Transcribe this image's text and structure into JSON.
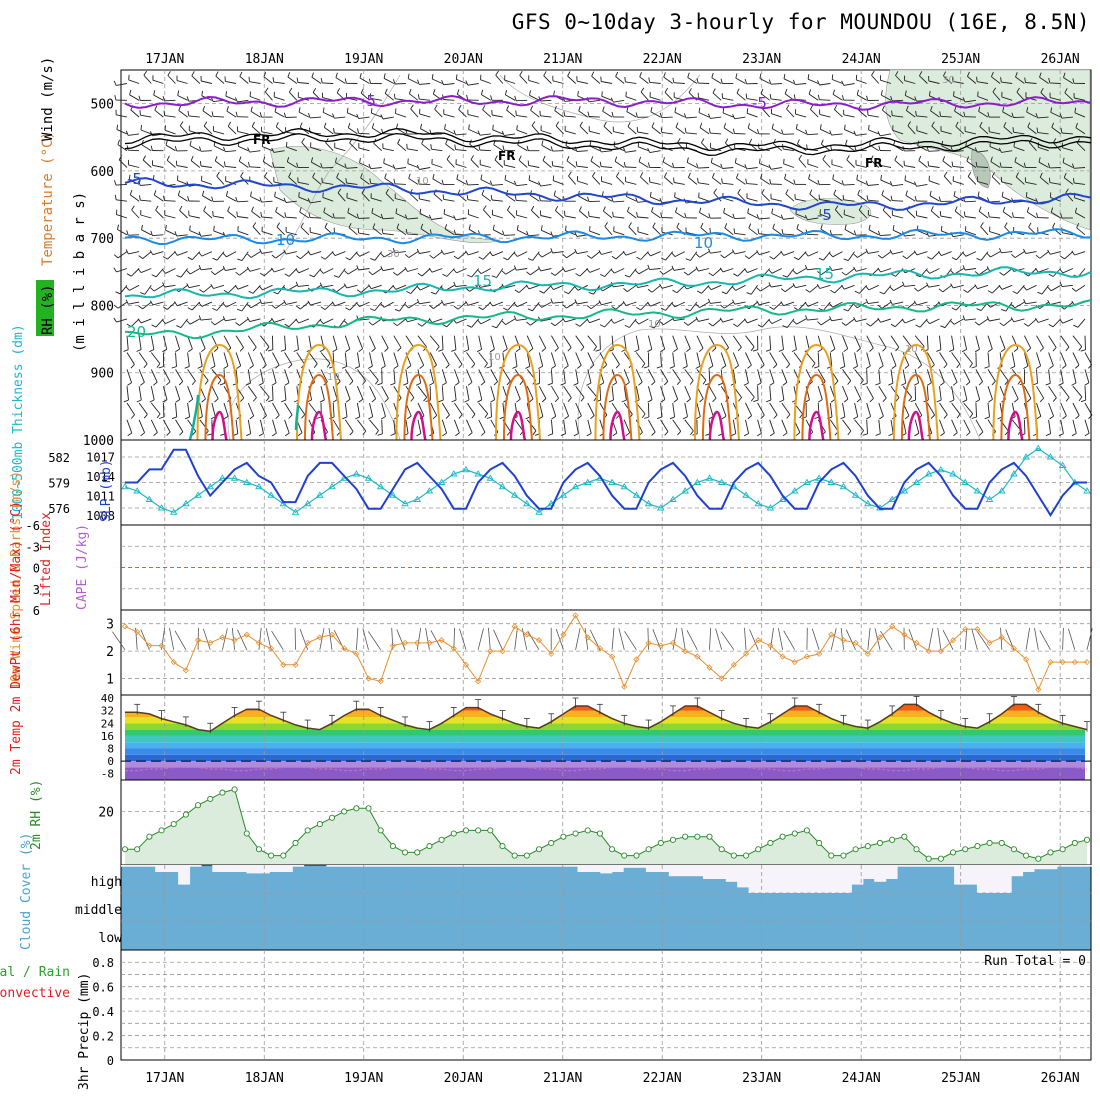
{
  "title": "GFS 0~10day 3-hourly for MOUNDOU (16E, 8.5N)",
  "colors": {
    "purple": "#8a1ec8",
    "black": "#000000",
    "blue": "#2146d0",
    "lightblue": "#1a8ae6",
    "teal": "#17b6b0",
    "green": "#16b88a",
    "orange": "#e8a020",
    "darkorange": "#e06a10",
    "magenta": "#d0108a",
    "slp": "#2040d0",
    "thick": "#20b8c8",
    "wind10": "#e89030",
    "rh2m": "#2a8a2a",
    "cloud": "#6aaed6",
    "precipTotal": "#2aa02a",
    "precipConv": "#e02020",
    "rhFill": "#dcecdc"
  },
  "chart_data": [
    {
      "panel": "upper-air",
      "type": "line",
      "x_axis": {
        "labels": [
          "17JAN",
          "18JAN",
          "19JAN",
          "20JAN",
          "21JAN",
          "22JAN",
          "23JAN",
          "24JAN",
          "25JAN",
          "26JAN"
        ],
        "start_day": 16.56,
        "end_day": 26.31
      },
      "y_axis": {
        "unit": "milli bars",
        "ticks": [
          "500",
          "600",
          "700",
          "800",
          "900",
          "1000"
        ],
        "range": [
          450,
          1000
        ]
      },
      "side_labels": {
        "wind": "Wind (m/s)",
        "temp": "Temperature (°C)",
        "rh": "RH (%)",
        "units": "(m i l l i b a r s)"
      },
      "isotherm_labels": [
        {
          "text": "-5",
          "color": "purple"
        },
        {
          "text": "-5",
          "color": "purple"
        },
        {
          "text": "FR"
        },
        {
          "text": "FR"
        },
        {
          "text": "FR"
        },
        {
          "text": "-5",
          "color": "blue"
        },
        {
          "text": "-5",
          "color": "blue"
        },
        {
          "text": "10",
          "color": "lightblue"
        },
        {
          "text": "10",
          "color": "lightblue"
        },
        {
          "text": "15",
          "color": "teal"
        },
        {
          "text": "15",
          "color": "teal"
        },
        {
          "text": "20",
          "color": "green"
        }
      ],
      "rh_contour_labels": [
        "10",
        "30",
        "10",
        "10",
        "10",
        "30",
        "10"
      ],
      "isotherms_hPa": [
        {
          "name": "-5 (purple)",
          "values": [
            500,
            498,
            497,
            496,
            497,
            495,
            498,
            501,
            502,
            500,
            499,
            497
          ]
        },
        {
          "name": "FR",
          "values": [
            556,
            551,
            549,
            547,
            553,
            557,
            562,
            567,
            565,
            561,
            557,
            553
          ]
        },
        {
          "name": "-5 (blue)",
          "values": [
            618,
            620,
            623,
            626,
            632,
            637,
            642,
            647,
            652,
            650,
            644,
            640
          ]
        },
        {
          "name": "10",
          "values": [
            700,
            702,
            701,
            700,
            699,
            698,
            697,
            696,
            697,
            695,
            694,
            693
          ]
        },
        {
          "name": "15",
          "values": [
            785,
            783,
            780,
            778,
            772,
            770,
            768,
            763,
            758,
            754,
            751,
            750
          ]
        },
        {
          "name": "20",
          "values": [
            845,
            840,
            830,
            822,
            818,
            815,
            812,
            808,
            805,
            802,
            800,
            800
          ]
        }
      ]
    },
    {
      "panel": "thickness-slp",
      "type": "line",
      "left_axis": {
        "label": "1000~500mb Thickness (dm)",
        "ticks": [
          "582",
          "579",
          "576"
        ],
        "range": [
          574,
          584
        ]
      },
      "right_axis": {
        "label": "SLP (mb)",
        "ticks": [
          "1017",
          "1014",
          "1011",
          "1008"
        ],
        "range": [
          1006.5,
          1019.5
        ]
      },
      "series": [
        {
          "name": "SLP",
          "values": [
            1013,
            1013,
            1015,
            1015,
            1018,
            1018,
            1014,
            1011,
            1013,
            1015,
            1016,
            1014,
            1013,
            1010,
            1010,
            1014,
            1016,
            1016,
            1014,
            1012,
            1009,
            1009,
            1012,
            1015,
            1016,
            1014,
            1012,
            1009,
            1009,
            1013,
            1015,
            1016,
            1014,
            1011,
            1009,
            1009,
            1013,
            1015,
            1016,
            1014,
            1011,
            1009,
            1009,
            1013,
            1015,
            1016,
            1014,
            1011,
            1009,
            1009,
            1013,
            1015,
            1016,
            1014,
            1011,
            1009,
            1009,
            1013,
            1015,
            1016,
            1014,
            1011,
            1009,
            1009,
            1013,
            1015,
            1016,
            1014,
            1011,
            1009,
            1009,
            1013,
            1015,
            1016,
            1014,
            1011,
            1008,
            1011,
            1013,
            1013
          ]
        },
        {
          "name": "Thickness",
          "values": [
            578.5,
            578,
            577,
            576,
            575.5,
            576.5,
            577.5,
            578.5,
            579.5,
            579.5,
            579,
            578.5,
            577.5,
            576.5,
            575.5,
            576.5,
            577.5,
            578.5,
            579.5,
            580,
            579.5,
            578.5,
            577.5,
            576.5,
            577,
            578,
            579,
            580,
            580.5,
            580,
            579.5,
            578.5,
            577.5,
            576.5,
            575.5,
            576.5,
            577.5,
            578.5,
            579,
            579.5,
            579,
            578.5,
            577.5,
            576.5,
            576,
            577,
            578,
            579,
            579.5,
            579,
            578.5,
            577.5,
            576.5,
            576,
            577,
            578,
            579,
            579.5,
            579,
            578.5,
            577.5,
            576.5,
            576,
            577,
            578,
            579,
            580,
            580.5,
            580,
            579,
            578,
            577,
            578,
            580,
            582,
            583,
            582,
            581,
            579,
            578
          ]
        }
      ]
    },
    {
      "panel": "instability",
      "type": "line",
      "left_axis": {
        "label": "Lifted Index",
        "ticks": [
          "-6",
          "-3",
          "0",
          "3",
          "6"
        ],
        "range": [
          -6,
          6
        ]
      },
      "right_axis": {
        "label": "CAPE (J/kg)"
      },
      "series": []
    },
    {
      "panel": "10m-wind",
      "type": "line",
      "axis": {
        "label": "10m Wind Speed & Barbs (m/s)",
        "ticks": [
          "3",
          "2",
          "1"
        ],
        "range": [
          0.4,
          3.5
        ]
      },
      "series": [
        {
          "name": "10m wind speed",
          "values": [
            2.9,
            2.7,
            2.2,
            2.2,
            1.6,
            1.3,
            2.4,
            2.3,
            2.5,
            2.4,
            2.6,
            2.3,
            2.1,
            1.5,
            1.5,
            2.3,
            2.5,
            2.6,
            2.1,
            1.9,
            1.0,
            0.9,
            2.2,
            2.3,
            2.3,
            2.3,
            2.4,
            2.1,
            1.5,
            0.9,
            2.0,
            2.0,
            2.9,
            2.6,
            2.4,
            1.9,
            2.6,
            3.3,
            2.5,
            2.1,
            1.8,
            0.7,
            1.7,
            2.3,
            2.2,
            2.3,
            2.0,
            1.8,
            1.4,
            1.0,
            1.5,
            1.9,
            2.4,
            2.2,
            1.8,
            1.6,
            1.8,
            1.9,
            2.6,
            2.4,
            2.3,
            1.9,
            2.5,
            2.9,
            2.6,
            2.3,
            2.0,
            2.0,
            2.4,
            2.8,
            2.8,
            2.3,
            2.5,
            2.1,
            1.7,
            0.6,
            1.6,
            1.6,
            1.6,
            1.6
          ]
        }
      ]
    },
    {
      "panel": "2m-temp",
      "type": "area",
      "axis": {
        "label": "2m Temp 2m DewPt (6hr Min/Max) (°C)",
        "ticks": [
          "40",
          "32",
          "24",
          "16",
          "8",
          "0",
          "-8"
        ],
        "range": [
          -12,
          42
        ]
      },
      "series": [
        {
          "name": "2m temp",
          "values": [
            31,
            31,
            30,
            27,
            25,
            23,
            20,
            19,
            24,
            29,
            33,
            33,
            29,
            26,
            23,
            21,
            20,
            24,
            29,
            33,
            33,
            29,
            26,
            23,
            21,
            20,
            24,
            29,
            34,
            34,
            30,
            27,
            24,
            22,
            21,
            25,
            30,
            35,
            35,
            31,
            27,
            24,
            22,
            21,
            25,
            30,
            35,
            35,
            31,
            27,
            24,
            22,
            21,
            25,
            30,
            35,
            35,
            31,
            27,
            24,
            22,
            21,
            25,
            30,
            36,
            36,
            31,
            27,
            24,
            22,
            21,
            25,
            30,
            36,
            36,
            31,
            27,
            24,
            22,
            20
          ]
        },
        {
          "name": "2m dewpoint",
          "values": [
            -6,
            -6,
            -5,
            -5,
            -4,
            -4,
            -4,
            -5,
            -5,
            -6,
            -6,
            -5,
            -5,
            -4,
            -4,
            -4,
            -5,
            -5,
            -6,
            -6,
            -5,
            -5,
            -4,
            -4,
            -4,
            -5,
            -5,
            -6,
            -6,
            -5,
            -5,
            -4,
            -4,
            -4,
            -5,
            -5,
            -6,
            -6,
            -5,
            -5,
            -4,
            -4,
            -4,
            -5,
            -5,
            -6,
            -6,
            -5,
            -5,
            -4,
            -4,
            -4,
            -5,
            -5,
            -6,
            -6,
            -5,
            -5,
            -4,
            -4,
            -4,
            -5,
            -5,
            -6,
            -6,
            -5,
            -5,
            -4,
            -4,
            -4,
            -5,
            -5,
            -6,
            -6,
            -5,
            -5,
            -4,
            -4,
            -4,
            -5
          ]
        }
      ]
    },
    {
      "panel": "2m-rh",
      "type": "area",
      "axis": {
        "label": "2m RH (%)",
        "ticks": [
          "20"
        ],
        "range": [
          3,
          30
        ]
      },
      "series": [
        {
          "name": "2m RH",
          "values": [
            8,
            8,
            12,
            14,
            16,
            19,
            22,
            24,
            26,
            27,
            13,
            8,
            6,
            6,
            10,
            14,
            16,
            18,
            20,
            21,
            21,
            14,
            9,
            7,
            7,
            9,
            11,
            13,
            14,
            14,
            14,
            9,
            6,
            6,
            8,
            10,
            12,
            13,
            14,
            13,
            8,
            6,
            6,
            8,
            10,
            11,
            12,
            12,
            12,
            8,
            6,
            6,
            8,
            10,
            12,
            13,
            14,
            10,
            6,
            6,
            8,
            9,
            10,
            11,
            12,
            8,
            5,
            5,
            7,
            8,
            9,
            10,
            10,
            8,
            6,
            5,
            7,
            8,
            10,
            11
          ]
        }
      ]
    },
    {
      "panel": "cloud-cover",
      "type": "area",
      "axis": {
        "label": "Cloud Cover (%)",
        "ticks": [
          "high",
          "middle",
          "low"
        ]
      },
      "series": [
        {
          "name": "high cloud",
          "values": [
            0.94,
            0.94,
            0.94,
            0.75,
            0.75,
            0.3,
            0.94,
            1,
            0.75,
            0.75,
            0.75,
            0.7,
            0.7,
            0.75,
            0.75,
            0.94,
            1,
            1,
            0.94,
            0.94,
            0.94,
            0.94,
            0.94,
            0.94,
            0.94,
            0.94,
            0.94,
            0.94,
            0.94,
            0.94,
            0.94,
            0.94,
            0.94,
            0.94,
            0.94,
            0.94,
            0.94,
            0.94,
            0.94,
            0.94,
            0.75,
            0.75,
            0.7,
            0.75,
            0.9,
            0.9,
            0.75,
            0.75,
            0.6,
            0.6,
            0.6,
            0.5,
            0.5,
            0.4,
            0.2,
            0,
            0,
            0,
            0,
            0,
            0,
            0,
            0,
            0,
            0.3,
            0.5,
            0.4,
            0.5,
            0.94,
            0.94,
            0.94,
            0.94,
            0.94,
            0.3,
            0.3,
            0,
            0,
            0,
            0.6,
            0.75,
            0.85,
            0.85,
            0.94,
            0.94,
            0.94
          ]
        }
      ]
    },
    {
      "panel": "precipitation",
      "type": "bar",
      "axis": {
        "label": "3hr Precip (mm)",
        "ticks": [
          "0.8",
          "0.6",
          "0.4",
          "0.2",
          "0"
        ],
        "range": [
          0,
          0.9
        ]
      },
      "legend": {
        "total": "Total / Rain",
        "convective": "Convective"
      },
      "run_total": "Run Total = 0",
      "values": []
    }
  ]
}
